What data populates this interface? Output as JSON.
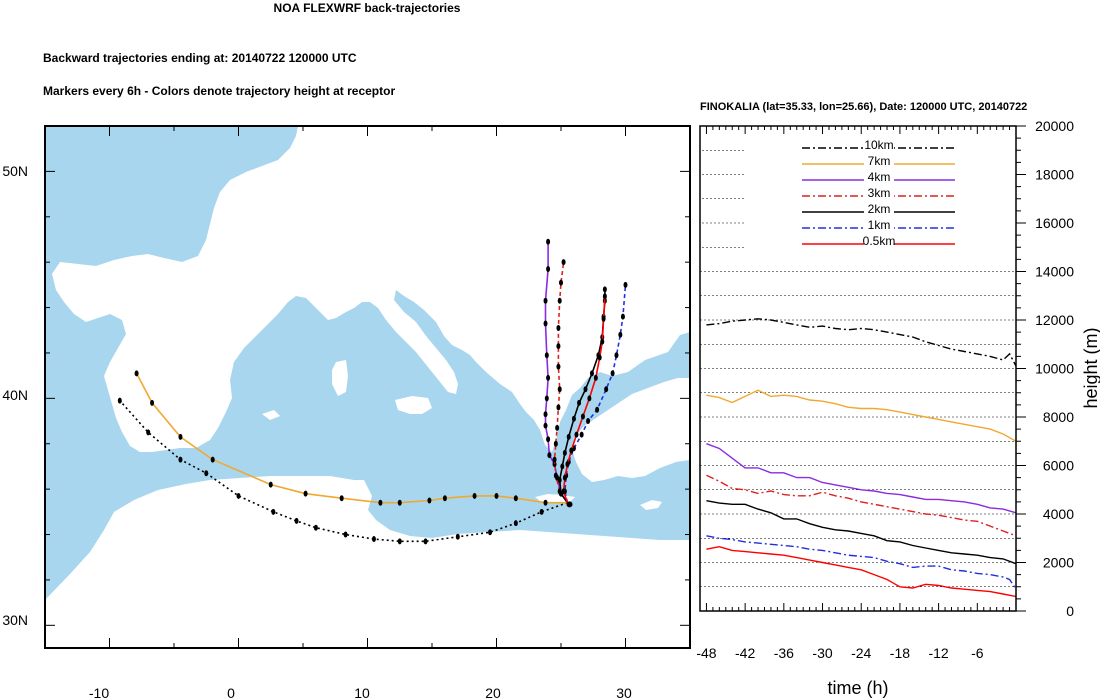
{
  "header": {
    "title": "NOA FLEXWRF back-trajectories",
    "line1": "Backward trajectories ending at: 20140722  120000 UTC",
    "line2": "Markers every 6h - Colors denote trajectory height at receptor"
  },
  "colors": {
    "sea": "#a9d6ef",
    "land": "#ffffff",
    "10km": "#000000",
    "7km": "#f0a830",
    "4km": "#8a2be2",
    "3km": "#e02020",
    "2km": "#000000",
    "1km": "#2030e0",
    "0.5km": "#ff0000"
  },
  "chart_data": [
    {
      "type": "map",
      "lon_range": [
        -15,
        35
      ],
      "lat_range": [
        29,
        52
      ],
      "x_ticks": [
        -10,
        0,
        10,
        20,
        30
      ],
      "y_ticks": [
        {
          "value": 30,
          "label": "30N"
        },
        {
          "value": 40,
          "label": "40N"
        },
        {
          "value": 50,
          "label": "50N"
        }
      ],
      "receptor": {
        "lon": 25.66,
        "lat": 35.33
      },
      "trajectories": [
        {
          "level": "10km",
          "path": [
            [
              25.5,
              35.4
            ],
            [
              23.5,
              35.0
            ],
            [
              21.5,
              34.5
            ],
            [
              19.5,
              34.1
            ],
            [
              17.0,
              33.9
            ],
            [
              14.5,
              33.7
            ],
            [
              12.5,
              33.7
            ],
            [
              10.5,
              33.8
            ],
            [
              8.3,
              34.0
            ],
            [
              6.0,
              34.3
            ],
            [
              4.5,
              34.6
            ],
            [
              2.7,
              35.0
            ],
            [
              0.0,
              35.7
            ],
            [
              -2.5,
              36.7
            ],
            [
              -4.5,
              37.3
            ],
            [
              -7.0,
              38.5
            ],
            [
              -9.2,
              39.9
            ]
          ]
        },
        {
          "level": "7km",
          "path": [
            [
              25.5,
              35.4
            ],
            [
              23.8,
              35.4
            ],
            [
              21.5,
              35.6
            ],
            [
              20.0,
              35.7
            ],
            [
              18.3,
              35.7
            ],
            [
              16.0,
              35.6
            ],
            [
              14.8,
              35.5
            ],
            [
              12.5,
              35.4
            ],
            [
              11.0,
              35.4
            ],
            [
              8.0,
              35.6
            ],
            [
              5.2,
              35.8
            ],
            [
              2.5,
              36.2
            ],
            [
              -2.0,
              37.3
            ],
            [
              -4.5,
              38.3
            ],
            [
              -6.7,
              39.8
            ],
            [
              -7.9,
              41.1
            ]
          ]
        },
        {
          "level": "4km",
          "path": [
            [
              25.5,
              35.4
            ],
            [
              25.0,
              35.8
            ],
            [
              24.7,
              36.5
            ],
            [
              24.5,
              37.1
            ],
            [
              24.1,
              37.5
            ],
            [
              24.0,
              38.2
            ],
            [
              23.8,
              38.8
            ],
            [
              23.8,
              39.3
            ],
            [
              23.9,
              40.0
            ],
            [
              24.0,
              40.9
            ],
            [
              23.9,
              41.9
            ],
            [
              23.8,
              43.3
            ],
            [
              23.8,
              44.3
            ],
            [
              24.0,
              45.7
            ],
            [
              24.0,
              46.9
            ]
          ]
        },
        {
          "level": "3km",
          "path": [
            [
              25.5,
              35.4
            ],
            [
              24.9,
              35.9
            ],
            [
              24.6,
              36.6
            ],
            [
              24.5,
              37.3
            ],
            [
              24.6,
              38.0
            ],
            [
              24.7,
              38.7
            ],
            [
              24.8,
              39.6
            ],
            [
              24.9,
              40.4
            ],
            [
              24.8,
              41.4
            ],
            [
              24.8,
              42.3
            ],
            [
              24.8,
              43.1
            ],
            [
              24.9,
              44.3
            ],
            [
              25.0,
              45.1
            ],
            [
              25.2,
              46.0
            ]
          ]
        },
        {
          "level": "2km",
          "path": [
            [
              25.5,
              35.4
            ],
            [
              25.0,
              35.8
            ],
            [
              24.9,
              36.4
            ],
            [
              25.1,
              37.0
            ],
            [
              25.3,
              37.6
            ],
            [
              25.6,
              38.3
            ],
            [
              26.0,
              39.1
            ],
            [
              26.4,
              39.8
            ],
            [
              26.9,
              40.4
            ],
            [
              27.4,
              41.1
            ],
            [
              27.9,
              41.9
            ],
            [
              28.2,
              42.7
            ],
            [
              28.3,
              43.6
            ],
            [
              28.4,
              44.3
            ],
            [
              28.4,
              44.8
            ]
          ]
        },
        {
          "level": "1km",
          "path": [
            [
              25.5,
              35.4
            ],
            [
              25.3,
              35.9
            ],
            [
              25.4,
              36.6
            ],
            [
              25.6,
              37.2
            ],
            [
              26.0,
              37.8
            ],
            [
              26.6,
              38.4
            ],
            [
              27.1,
              39.0
            ],
            [
              27.8,
              39.5
            ],
            [
              28.5,
              40.4
            ],
            [
              29.0,
              41.1
            ],
            [
              29.3,
              41.9
            ],
            [
              29.6,
              42.8
            ],
            [
              29.8,
              43.6
            ],
            [
              30.0,
              45.0
            ]
          ]
        },
        {
          "level": "0.5km",
          "path": [
            [
              25.5,
              35.4
            ],
            [
              25.2,
              35.9
            ],
            [
              25.3,
              36.5
            ],
            [
              25.5,
              37.1
            ],
            [
              25.8,
              37.7
            ],
            [
              26.2,
              38.4
            ],
            [
              26.7,
              39.2
            ],
            [
              27.2,
              40.0
            ],
            [
              27.7,
              40.9
            ],
            [
              28.0,
              41.8
            ],
            [
              28.2,
              42.5
            ],
            [
              28.3,
              43.5
            ],
            [
              28.4,
              44.5
            ]
          ]
        }
      ]
    },
    {
      "type": "line",
      "title": "FINOKALIA (lat=35.33,  lon=25.66), Date: 120000 UTC, 20140722",
      "xlabel": "time (h)",
      "ylabel": "height (m)",
      "xlim": [
        -49,
        0
      ],
      "ylim": [
        0,
        20000
      ],
      "x_ticks": [
        -48,
        -42,
        -36,
        -30,
        -24,
        -18,
        -12,
        -6
      ],
      "y_ticks": [
        0,
        2000,
        4000,
        6000,
        8000,
        10000,
        12000,
        14000,
        16000,
        18000,
        20000
      ],
      "legend_position": "top-right",
      "series": [
        {
          "name": "10km",
          "style": "dashdot",
          "x": [
            -48,
            -46,
            -44,
            -42,
            -40,
            -38,
            -36,
            -34,
            -32,
            -30,
            -28,
            -26,
            -24,
            -22,
            -20,
            -18,
            -16,
            -14,
            -12,
            -10,
            -8,
            -6,
            -4,
            -2,
            -1,
            0
          ],
          "y": [
            11800,
            11850,
            11950,
            12000,
            12050,
            12000,
            11900,
            11800,
            11700,
            11750,
            11650,
            11600,
            11650,
            11600,
            11500,
            11400,
            11300,
            11100,
            10950,
            10800,
            10700,
            10600,
            10500,
            10350,
            10600,
            10100
          ]
        },
        {
          "name": "7km",
          "style": "solid",
          "x": [
            -48,
            -46,
            -44,
            -42,
            -40,
            -38,
            -36,
            -34,
            -32,
            -30,
            -28,
            -26,
            -24,
            -22,
            -20,
            -18,
            -16,
            -14,
            -12,
            -10,
            -8,
            -6,
            -4,
            -2,
            0
          ],
          "y": [
            8900,
            8800,
            8600,
            8850,
            9100,
            8850,
            8900,
            8850,
            8700,
            8650,
            8550,
            8400,
            8350,
            8350,
            8300,
            8200,
            8100,
            8000,
            7900,
            7800,
            7700,
            7600,
            7500,
            7300,
            7000
          ]
        },
        {
          "name": "4km",
          "style": "solid",
          "x": [
            -48,
            -46,
            -44,
            -42,
            -40,
            -38,
            -36,
            -34,
            -32,
            -30,
            -28,
            -26,
            -24,
            -22,
            -20,
            -18,
            -16,
            -14,
            -12,
            -10,
            -8,
            -6,
            -4,
            -2,
            0
          ],
          "y": [
            6900,
            6700,
            6300,
            5900,
            5900,
            5700,
            5700,
            5500,
            5500,
            5300,
            5200,
            5100,
            5000,
            4950,
            4850,
            4800,
            4700,
            4600,
            4600,
            4550,
            4500,
            4400,
            4250,
            4200,
            4050
          ]
        },
        {
          "name": "3km",
          "style": "dashdot",
          "x": [
            -48,
            -46,
            -44,
            -42,
            -40,
            -38,
            -36,
            -34,
            -32,
            -30,
            -28,
            -26,
            -24,
            -22,
            -20,
            -18,
            -16,
            -14,
            -12,
            -10,
            -8,
            -6,
            -4,
            -2,
            0
          ],
          "y": [
            5600,
            5350,
            5050,
            5000,
            4850,
            4950,
            4800,
            4750,
            4750,
            4900,
            4750,
            4650,
            4500,
            4400,
            4300,
            4200,
            4100,
            4000,
            3950,
            3850,
            3750,
            3700,
            3500,
            3300,
            3100
          ]
        },
        {
          "name": "2km",
          "style": "solid",
          "x": [
            -48,
            -46,
            -44,
            -42,
            -40,
            -38,
            -36,
            -34,
            -32,
            -30,
            -28,
            -26,
            -24,
            -22,
            -20,
            -18,
            -16,
            -14,
            -12,
            -10,
            -8,
            -6,
            -4,
            -2,
            0
          ],
          "y": [
            4550,
            4450,
            4400,
            4400,
            4200,
            4050,
            3800,
            3800,
            3600,
            3450,
            3350,
            3300,
            3200,
            3100,
            2900,
            2850,
            2700,
            2600,
            2500,
            2400,
            2350,
            2300,
            2200,
            2150,
            1950
          ]
        },
        {
          "name": "1km",
          "style": "dashdot",
          "x": [
            -48,
            -46,
            -44,
            -42,
            -40,
            -38,
            -36,
            -34,
            -32,
            -30,
            -28,
            -26,
            -24,
            -22,
            -20,
            -18,
            -16,
            -14,
            -12,
            -10,
            -8,
            -6,
            -4,
            -2,
            -1,
            0
          ],
          "y": [
            3100,
            3000,
            2950,
            2850,
            2800,
            2750,
            2700,
            2650,
            2550,
            2500,
            2400,
            2300,
            2250,
            2200,
            2050,
            1950,
            1800,
            1850,
            1850,
            1700,
            1650,
            1550,
            1500,
            1400,
            1300,
            900
          ]
        },
        {
          "name": "0.5km",
          "style": "solid",
          "x": [
            -48,
            -46,
            -44,
            -42,
            -40,
            -38,
            -36,
            -34,
            -32,
            -30,
            -28,
            -26,
            -24,
            -22,
            -20,
            -18,
            -16,
            -14,
            -12,
            -10,
            -8,
            -6,
            -4,
            -2,
            0
          ],
          "y": [
            2550,
            2650,
            2500,
            2450,
            2400,
            2350,
            2300,
            2200,
            2100,
            2000,
            1900,
            1800,
            1700,
            1500,
            1300,
            1000,
            950,
            1100,
            1050,
            950,
            900,
            850,
            800,
            700,
            600
          ]
        }
      ]
    }
  ]
}
